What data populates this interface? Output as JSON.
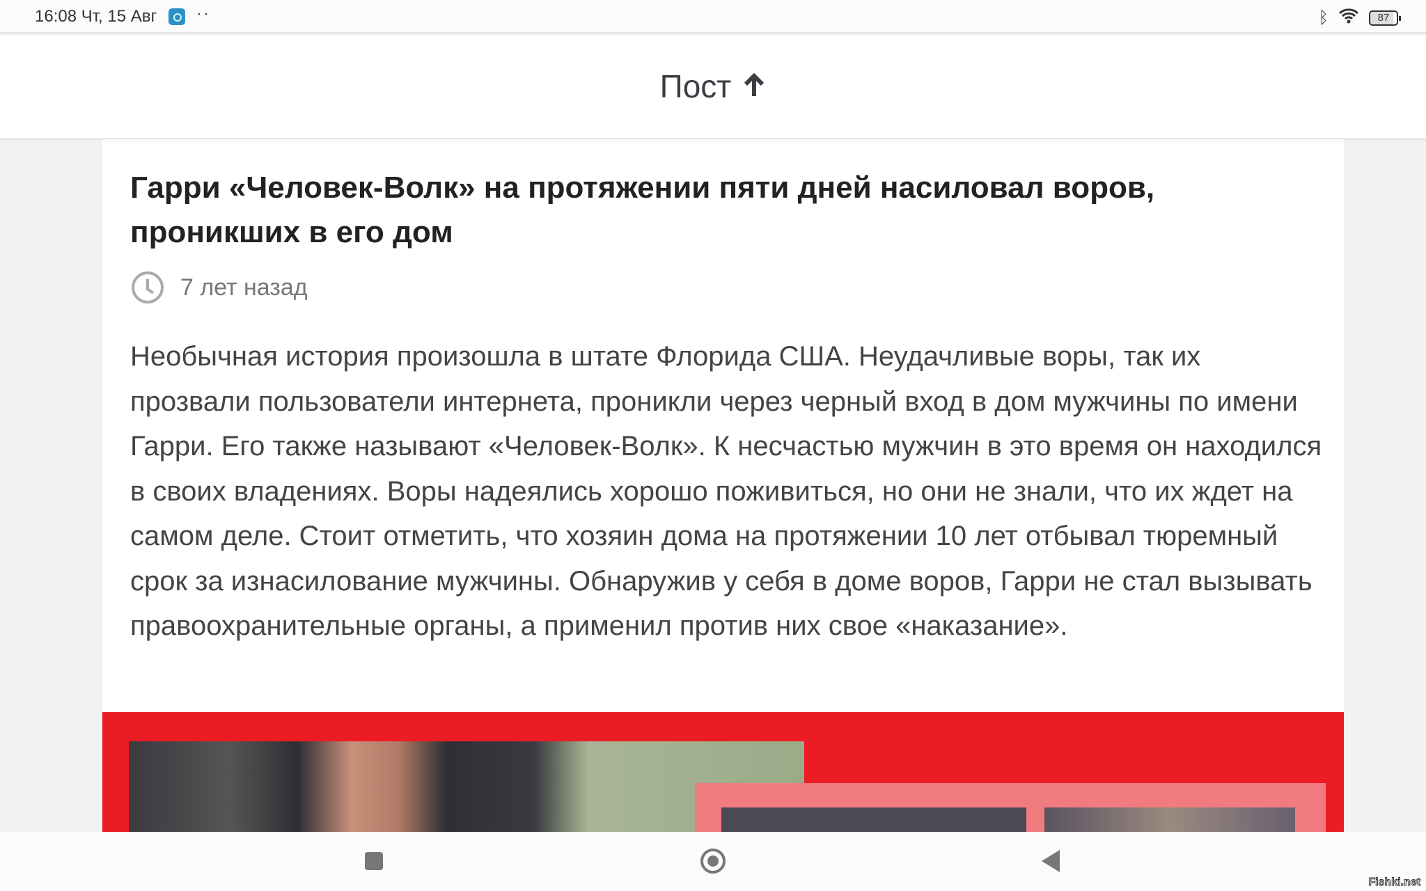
{
  "status_bar": {
    "time": "16:08 Чт, 15 Авг",
    "battery": "87",
    "icons": [
      "screenshot-icon",
      "more-dots-icon",
      "bluetooth-icon",
      "wifi-icon",
      "battery-icon"
    ]
  },
  "header": {
    "title": "Пост",
    "icon": "arrow-up-icon"
  },
  "post": {
    "title": "Гарри «Человек-Волк» на протяжении пяти дней насиловал воров, проникших в его дом",
    "time_ago": "7 лет назад",
    "body": "Необычная история произошла в штате Флорида США. Неудачливые воры, так их прозвали пользователи интернета, проникли через черный вход в дом мужчины по имени Гарри. Его также называют «Человек-Волк». К несчастью мужчин в это время он находился в своих владениях. Воры надеялись хорошо поживиться, но они не знали, что их ждет на самом деле. Стоит отметить, что хозяин дома на протяжении 10 лет отбывал тюремный срок за изнасилование мужчины. Обнаружив у себя в доме воров, Гарри не стал вызывать правоохранительные органы, а применил против них свое «наказание»."
  },
  "colors": {
    "image_red": "#ec1c24",
    "image_pink": "#f27b80"
  },
  "watermark": "Fishki.net"
}
